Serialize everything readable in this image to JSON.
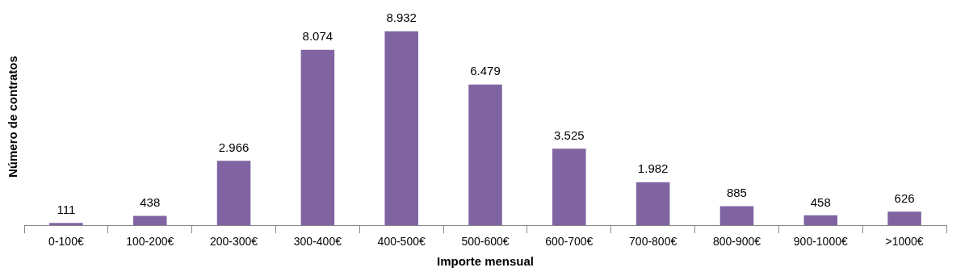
{
  "chart_data": {
    "type": "bar",
    "xlabel": "Importe mensual",
    "ylabel": "Número de contratos",
    "categories": [
      "0-100€",
      "100-200€",
      "200-300€",
      "300-400€",
      "400-500€",
      "500-600€",
      "600-700€",
      "700-800€",
      "800-900€",
      "900-1000€",
      ">1000€"
    ],
    "values": [
      111,
      438,
      2966,
      8074,
      8932,
      6479,
      3525,
      1982,
      885,
      458,
      626
    ],
    "value_labels": [
      "111",
      "438",
      "2.966",
      "8.074",
      "8.932",
      "6.479",
      "3.525",
      "1.982",
      "885",
      "458",
      "626"
    ],
    "color": "#8064a2",
    "tick_labels": "x",
    "grid": false,
    "legend": false
  }
}
